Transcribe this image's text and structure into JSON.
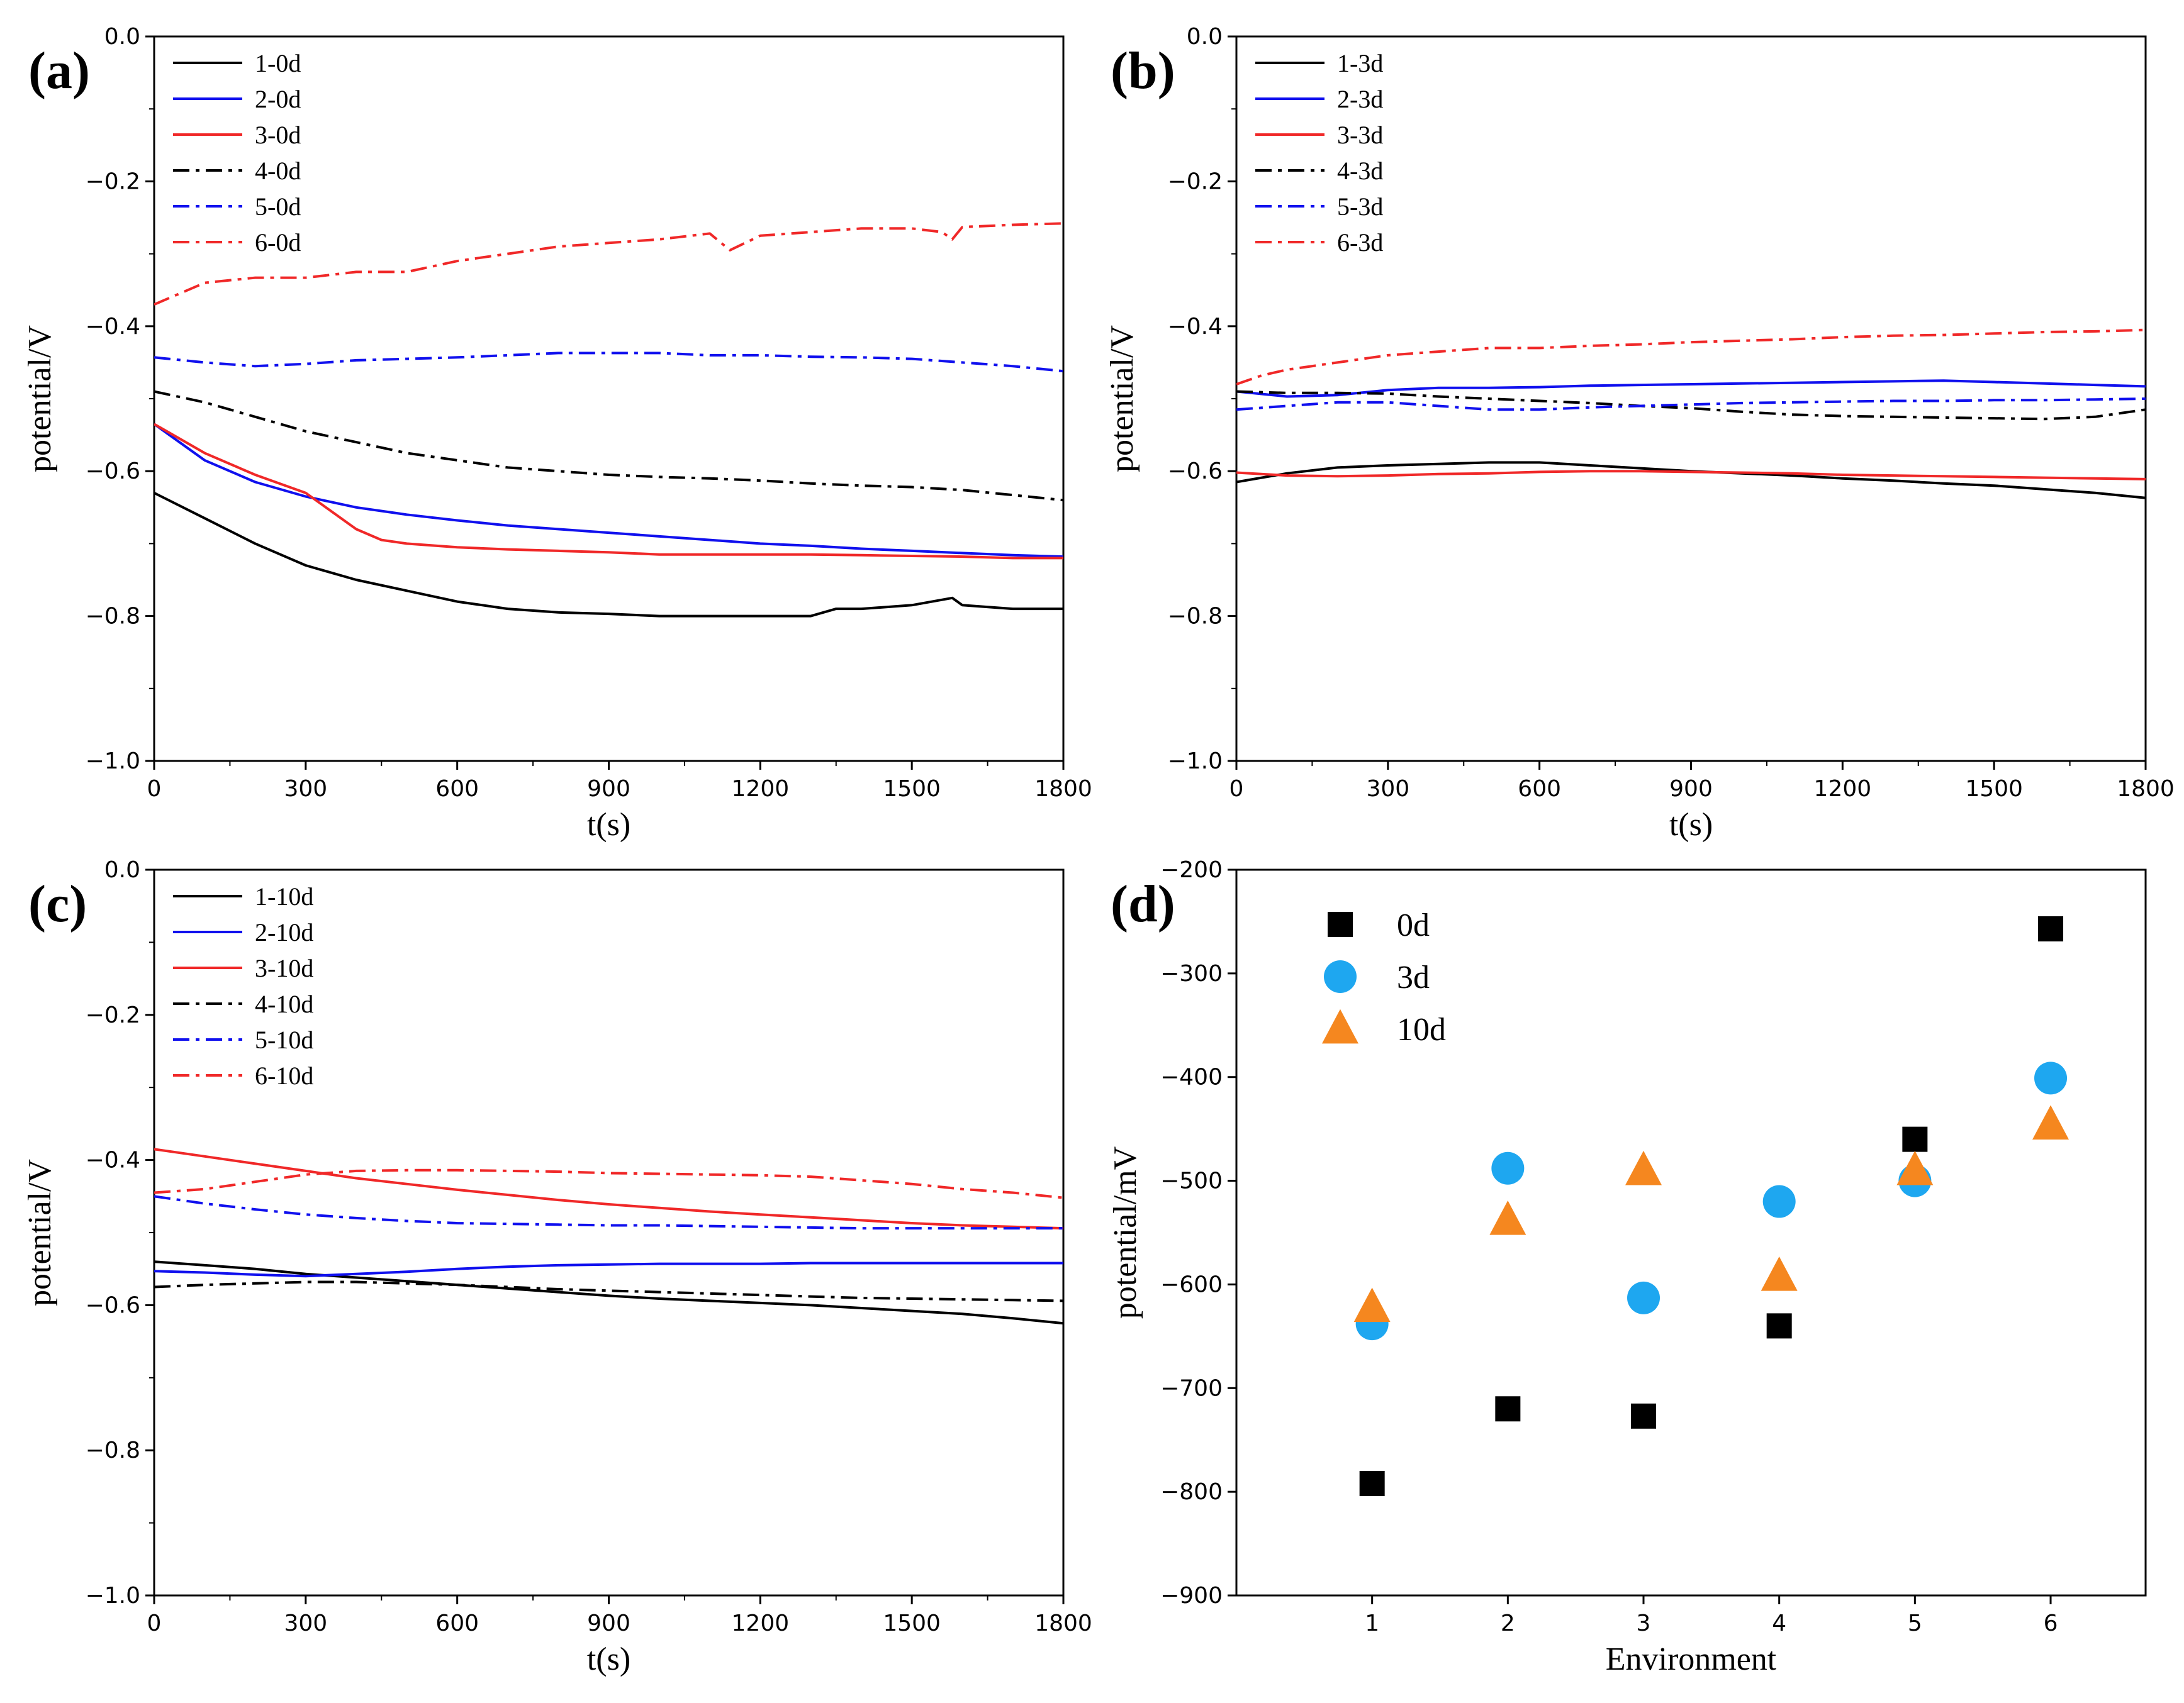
{
  "figure": {
    "description_free": true
  },
  "colors": {
    "black": "#000000",
    "blue": "#1010ee",
    "red": "#f02828",
    "skyblue": "#1ea7f0",
    "orange": "#f5871f"
  },
  "chart_data": [
    {
      "id": "a",
      "type": "line",
      "panel_label": "(a)",
      "xlabel": "t(s)",
      "ylabel": "potential/V",
      "xlim": [
        0,
        1800
      ],
      "ylim": [
        -1.0,
        0.0
      ],
      "xticks": [
        "0",
        "300",
        "600",
        "900",
        "1200",
        "1500",
        "1800"
      ],
      "yticks": [
        "0.0",
        "-0.2",
        "-0.4",
        "-0.6",
        "-0.8",
        "-1.0"
      ],
      "legend_position": "top-left",
      "series": [
        {
          "name": "1-0d",
          "color": "black",
          "dash": "solid",
          "x": [
            0,
            100,
            200,
            300,
            400,
            500,
            600,
            700,
            800,
            900,
            1000,
            1100,
            1200,
            1300,
            1350,
            1400,
            1500,
            1580,
            1600,
            1700,
            1800
          ],
          "y": [
            -0.63,
            -0.665,
            -0.7,
            -0.73,
            -0.75,
            -0.765,
            -0.78,
            -0.79,
            -0.795,
            -0.797,
            -0.8,
            -0.8,
            -0.8,
            -0.8,
            -0.79,
            -0.79,
            -0.785,
            -0.775,
            -0.785,
            -0.79,
            -0.79
          ]
        },
        {
          "name": "2-0d",
          "color": "blue",
          "dash": "solid",
          "x": [
            0,
            100,
            200,
            300,
            400,
            500,
            600,
            700,
            800,
            900,
            1000,
            1100,
            1200,
            1300,
            1400,
            1500,
            1600,
            1700,
            1800
          ],
          "y": [
            -0.535,
            -0.585,
            -0.615,
            -0.635,
            -0.65,
            -0.66,
            -0.668,
            -0.675,
            -0.68,
            -0.685,
            -0.69,
            -0.695,
            -0.7,
            -0.703,
            -0.707,
            -0.71,
            -0.713,
            -0.716,
            -0.718
          ]
        },
        {
          "name": "3-0d",
          "color": "red",
          "dash": "solid",
          "x": [
            0,
            100,
            200,
            300,
            350,
            400,
            450,
            500,
            600,
            700,
            800,
            900,
            1000,
            1100,
            1200,
            1300,
            1400,
            1500,
            1600,
            1700,
            1800
          ],
          "y": [
            -0.535,
            -0.575,
            -0.605,
            -0.63,
            -0.655,
            -0.68,
            -0.695,
            -0.7,
            -0.705,
            -0.708,
            -0.71,
            -0.712,
            -0.715,
            -0.715,
            -0.715,
            -0.715,
            -0.716,
            -0.717,
            -0.718,
            -0.72,
            -0.72
          ]
        },
        {
          "name": "4-0d",
          "color": "black",
          "dash": "dashdot",
          "x": [
            0,
            100,
            200,
            300,
            400,
            500,
            600,
            700,
            800,
            900,
            1000,
            1100,
            1200,
            1300,
            1400,
            1500,
            1600,
            1700,
            1800
          ],
          "y": [
            -0.49,
            -0.505,
            -0.525,
            -0.545,
            -0.56,
            -0.575,
            -0.585,
            -0.595,
            -0.6,
            -0.605,
            -0.608,
            -0.61,
            -0.613,
            -0.617,
            -0.62,
            -0.622,
            -0.626,
            -0.633,
            -0.64
          ]
        },
        {
          "name": "5-0d",
          "color": "blue",
          "dash": "dashdot",
          "x": [
            0,
            100,
            200,
            300,
            400,
            500,
            600,
            700,
            800,
            900,
            1000,
            1100,
            1200,
            1300,
            1400,
            1500,
            1600,
            1700,
            1800
          ],
          "y": [
            -0.443,
            -0.45,
            -0.455,
            -0.452,
            -0.447,
            -0.445,
            -0.443,
            -0.44,
            -0.437,
            -0.437,
            -0.437,
            -0.44,
            -0.44,
            -0.442,
            -0.443,
            -0.445,
            -0.45,
            -0.455,
            -0.462
          ]
        },
        {
          "name": "6-0d",
          "color": "red",
          "dash": "dashdot",
          "x": [
            0,
            50,
            100,
            200,
            300,
            400,
            500,
            600,
            700,
            800,
            900,
            1000,
            1100,
            1140,
            1200,
            1300,
            1400,
            1500,
            1560,
            1580,
            1600,
            1700,
            1800
          ],
          "y": [
            -0.37,
            -0.355,
            -0.34,
            -0.333,
            -0.333,
            -0.325,
            -0.325,
            -0.31,
            -0.3,
            -0.29,
            -0.285,
            -0.28,
            -0.272,
            -0.295,
            -0.275,
            -0.27,
            -0.265,
            -0.265,
            -0.27,
            -0.28,
            -0.263,
            -0.26,
            -0.258
          ]
        }
      ]
    },
    {
      "id": "b",
      "type": "line",
      "panel_label": "(b)",
      "xlabel": "t(s)",
      "ylabel": "potential/V",
      "xlim": [
        0,
        1800
      ],
      "ylim": [
        -1.0,
        0.0
      ],
      "xticks": [
        "0",
        "300",
        "600",
        "900",
        "1200",
        "1500",
        "1800"
      ],
      "yticks": [
        "0.0",
        "-0.2",
        "-0.4",
        "-0.6",
        "-0.8",
        "-1.0"
      ],
      "legend_position": "top-left",
      "series": [
        {
          "name": "1-3d",
          "color": "black",
          "dash": "solid",
          "x": [
            0,
            100,
            200,
            300,
            400,
            500,
            600,
            700,
            800,
            900,
            1000,
            1100,
            1200,
            1300,
            1400,
            1500,
            1600,
            1700,
            1800
          ],
          "y": [
            -0.615,
            -0.603,
            -0.595,
            -0.592,
            -0.59,
            -0.588,
            -0.588,
            -0.592,
            -0.596,
            -0.6,
            -0.603,
            -0.606,
            -0.61,
            -0.613,
            -0.617,
            -0.62,
            -0.625,
            -0.63,
            -0.637
          ]
        },
        {
          "name": "2-3d",
          "color": "blue",
          "dash": "solid",
          "x": [
            0,
            100,
            200,
            300,
            400,
            500,
            600,
            700,
            800,
            900,
            1000,
            1100,
            1200,
            1300,
            1400,
            1500,
            1600,
            1700,
            1800
          ],
          "y": [
            -0.49,
            -0.497,
            -0.495,
            -0.488,
            -0.485,
            -0.485,
            -0.484,
            -0.482,
            -0.481,
            -0.48,
            -0.479,
            -0.478,
            -0.477,
            -0.476,
            -0.475,
            -0.477,
            -0.479,
            -0.481,
            -0.483
          ]
        },
        {
          "name": "3-3d",
          "color": "red",
          "dash": "solid",
          "x": [
            0,
            100,
            200,
            300,
            400,
            500,
            600,
            700,
            800,
            900,
            1000,
            1100,
            1200,
            1300,
            1400,
            1500,
            1600,
            1700,
            1800
          ],
          "y": [
            -0.602,
            -0.606,
            -0.607,
            -0.606,
            -0.604,
            -0.603,
            -0.601,
            -0.6,
            -0.6,
            -0.601,
            -0.602,
            -0.603,
            -0.605,
            -0.606,
            -0.607,
            -0.608,
            -0.609,
            -0.61,
            -0.611
          ]
        },
        {
          "name": "4-3d",
          "color": "black",
          "dash": "dashdot",
          "x": [
            0,
            100,
            200,
            300,
            400,
            500,
            600,
            700,
            800,
            900,
            1000,
            1100,
            1200,
            1300,
            1400,
            1500,
            1600,
            1700,
            1800
          ],
          "y": [
            -0.49,
            -0.492,
            -0.492,
            -0.493,
            -0.497,
            -0.5,
            -0.503,
            -0.506,
            -0.51,
            -0.513,
            -0.518,
            -0.522,
            -0.524,
            -0.525,
            -0.526,
            -0.527,
            -0.528,
            -0.525,
            -0.515
          ]
        },
        {
          "name": "5-3d",
          "color": "blue",
          "dash": "dashdot",
          "x": [
            0,
            100,
            200,
            300,
            400,
            500,
            600,
            700,
            800,
            900,
            1000,
            1100,
            1200,
            1300,
            1400,
            1500,
            1600,
            1700,
            1800
          ],
          "y": [
            -0.515,
            -0.51,
            -0.505,
            -0.505,
            -0.51,
            -0.515,
            -0.515,
            -0.512,
            -0.51,
            -0.508,
            -0.506,
            -0.505,
            -0.504,
            -0.503,
            -0.503,
            -0.502,
            -0.502,
            -0.501,
            -0.5
          ]
        },
        {
          "name": "6-3d",
          "color": "red",
          "dash": "dashdot",
          "x": [
            0,
            50,
            100,
            200,
            300,
            400,
            500,
            600,
            700,
            800,
            900,
            1000,
            1100,
            1200,
            1300,
            1400,
            1500,
            1600,
            1700,
            1800
          ],
          "y": [
            -0.48,
            -0.468,
            -0.46,
            -0.45,
            -0.44,
            -0.435,
            -0.43,
            -0.43,
            -0.427,
            -0.425,
            -0.422,
            -0.42,
            -0.418,
            -0.415,
            -0.413,
            -0.412,
            -0.41,
            -0.408,
            -0.407,
            -0.405
          ]
        }
      ]
    },
    {
      "id": "c",
      "type": "line",
      "panel_label": "(c)",
      "xlabel": "t(s)",
      "ylabel": "potential/V",
      "xlim": [
        0,
        1800
      ],
      "ylim": [
        -1.0,
        0.0
      ],
      "xticks": [
        "0",
        "300",
        "600",
        "900",
        "1200",
        "1500",
        "1800"
      ],
      "yticks": [
        "0.0",
        "-0.2",
        "-0.4",
        "-0.6",
        "-0.8",
        "-1.0"
      ],
      "legend_position": "top-left",
      "series": [
        {
          "name": "1-10d",
          "color": "black",
          "dash": "solid",
          "x": [
            0,
            100,
            200,
            300,
            400,
            500,
            600,
            700,
            800,
            900,
            1000,
            1100,
            1200,
            1300,
            1400,
            1500,
            1600,
            1700,
            1800
          ],
          "y": [
            -0.54,
            -0.545,
            -0.55,
            -0.557,
            -0.562,
            -0.567,
            -0.572,
            -0.577,
            -0.582,
            -0.587,
            -0.591,
            -0.594,
            -0.597,
            -0.6,
            -0.604,
            -0.608,
            -0.612,
            -0.618,
            -0.625
          ]
        },
        {
          "name": "2-10d",
          "color": "blue",
          "dash": "solid",
          "x": [
            0,
            100,
            200,
            300,
            400,
            500,
            600,
            700,
            800,
            900,
            1000,
            1100,
            1200,
            1300,
            1400,
            1500,
            1600,
            1700,
            1800
          ],
          "y": [
            -0.553,
            -0.555,
            -0.558,
            -0.56,
            -0.557,
            -0.554,
            -0.55,
            -0.547,
            -0.545,
            -0.544,
            -0.543,
            -0.543,
            -0.543,
            -0.542,
            -0.542,
            -0.542,
            -0.542,
            -0.542,
            -0.542
          ]
        },
        {
          "name": "3-10d",
          "color": "red",
          "dash": "solid",
          "x": [
            0,
            100,
            200,
            300,
            400,
            500,
            600,
            700,
            800,
            900,
            1000,
            1100,
            1200,
            1300,
            1400,
            1500,
            1600,
            1700,
            1800
          ],
          "y": [
            -0.385,
            -0.395,
            -0.405,
            -0.415,
            -0.425,
            -0.433,
            -0.441,
            -0.448,
            -0.455,
            -0.461,
            -0.466,
            -0.471,
            -0.475,
            -0.479,
            -0.483,
            -0.487,
            -0.49,
            -0.492,
            -0.494
          ]
        },
        {
          "name": "4-10d",
          "color": "black",
          "dash": "dashdot",
          "x": [
            0,
            100,
            200,
            300,
            400,
            500,
            600,
            700,
            800,
            900,
            1000,
            1100,
            1200,
            1300,
            1400,
            1500,
            1600,
            1700,
            1800
          ],
          "y": [
            -0.575,
            -0.572,
            -0.57,
            -0.568,
            -0.568,
            -0.57,
            -0.572,
            -0.575,
            -0.578,
            -0.58,
            -0.582,
            -0.584,
            -0.586,
            -0.588,
            -0.59,
            -0.591,
            -0.592,
            -0.593,
            -0.594
          ]
        },
        {
          "name": "5-10d",
          "color": "blue",
          "dash": "dashdot",
          "x": [
            0,
            100,
            200,
            300,
            400,
            500,
            600,
            700,
            800,
            900,
            1000,
            1100,
            1200,
            1300,
            1400,
            1500,
            1600,
            1700,
            1800
          ],
          "y": [
            -0.45,
            -0.46,
            -0.468,
            -0.475,
            -0.48,
            -0.484,
            -0.487,
            -0.488,
            -0.489,
            -0.49,
            -0.49,
            -0.491,
            -0.492,
            -0.493,
            -0.494,
            -0.494,
            -0.494,
            -0.494,
            -0.494
          ]
        },
        {
          "name": "6-10d",
          "color": "red",
          "dash": "dashdot",
          "x": [
            0,
            100,
            200,
            300,
            400,
            500,
            600,
            700,
            800,
            900,
            1000,
            1100,
            1200,
            1300,
            1400,
            1500,
            1600,
            1700,
            1800
          ],
          "y": [
            -0.445,
            -0.44,
            -0.43,
            -0.42,
            -0.415,
            -0.414,
            -0.414,
            -0.415,
            -0.416,
            -0.418,
            -0.419,
            -0.42,
            -0.421,
            -0.423,
            -0.428,
            -0.433,
            -0.44,
            -0.445,
            -0.452
          ]
        }
      ]
    },
    {
      "id": "d",
      "type": "scatter",
      "panel_label": "(d)",
      "xlabel": "Environment",
      "ylabel": "potential/mV",
      "xlim": [
        0.0,
        6.7
      ],
      "ylim": [
        -900,
        -200
      ],
      "xticks": [
        "1",
        "2",
        "3",
        "4",
        "5",
        "6"
      ],
      "yticks": [
        "-200",
        "-300",
        "-400",
        "-500",
        "-600",
        "-700",
        "-800",
        "-900"
      ],
      "legend_position": "top-left",
      "series": [
        {
          "name": "0d",
          "color": "black",
          "marker": "square",
          "x": [
            1,
            2,
            3,
            4,
            5,
            6
          ],
          "y": [
            -792,
            -720,
            -727,
            -640,
            -460,
            -257
          ]
        },
        {
          "name": "3d",
          "color": "skyblue",
          "marker": "circle",
          "x": [
            1,
            2,
            3,
            4,
            5,
            6
          ],
          "y": [
            -638,
            -488,
            -613,
            -520,
            -500,
            -401
          ]
        },
        {
          "name": "10d",
          "color": "orange",
          "marker": "triangle",
          "x": [
            1,
            2,
            3,
            4,
            5,
            6
          ],
          "y": [
            -622,
            -538,
            -490,
            -592,
            -490,
            -446
          ]
        }
      ]
    }
  ]
}
